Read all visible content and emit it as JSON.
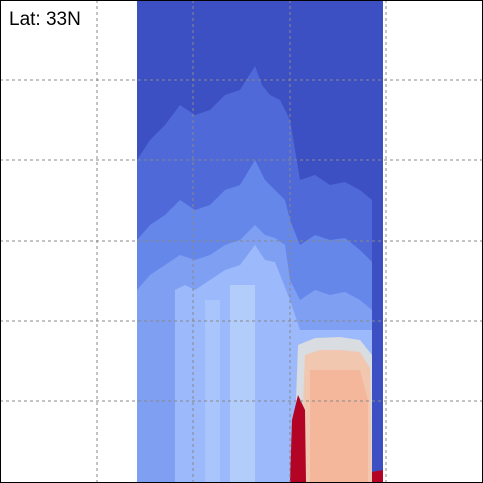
{
  "chart_data": {
    "type": "contour",
    "title": "Lat: 33N"
  }
}
